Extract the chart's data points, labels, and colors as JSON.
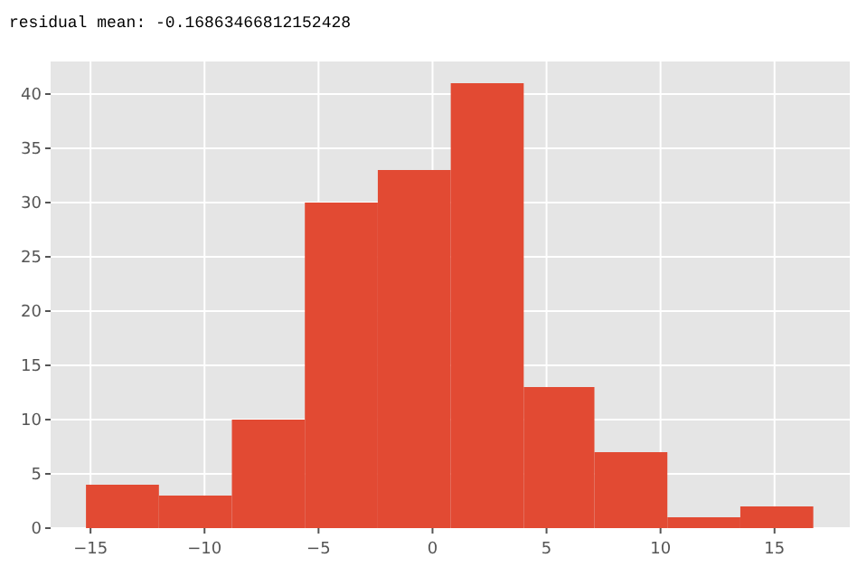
{
  "chart_data": {
    "type": "histogram",
    "title": "residual mean: -0.16863466812152428",
    "bins": [
      -15.2,
      -12.0,
      -8.8,
      -5.6,
      -2.4,
      0.8,
      4.0,
      7.1,
      10.3,
      13.5,
      16.7
    ],
    "values": [
      4,
      3,
      10,
      30,
      33,
      41,
      13,
      7,
      1,
      2
    ],
    "color": "#e24a33",
    "xlim": [
      -16.75,
      18.3
    ],
    "xticks": [
      {
        "value": -15,
        "label": "−15"
      },
      {
        "value": -10,
        "label": "−10"
      },
      {
        "value": -5,
        "label": "−5"
      },
      0,
      5,
      10,
      15
    ],
    "ylim": [
      0,
      43
    ],
    "yticks": [
      0,
      5,
      10,
      15,
      20,
      25,
      30,
      35,
      40
    ],
    "grid": true
  }
}
